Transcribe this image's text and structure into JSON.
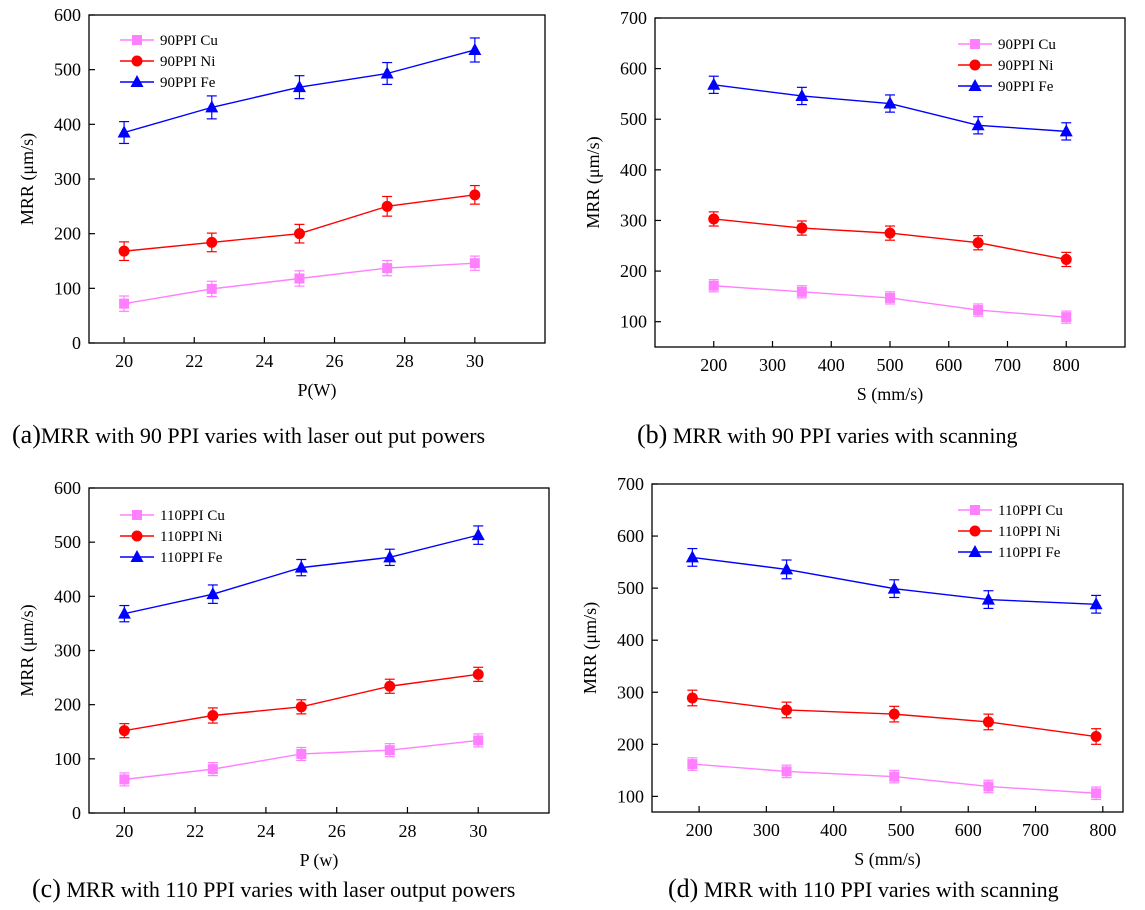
{
  "chart_data": [
    {
      "id": "a",
      "type": "line",
      "caption_tag": "(a)",
      "caption_text": "MRR with 90 PPI varies with laser out put powers",
      "xlabel": "P(W)",
      "ylabel": "MRR (μm/s)",
      "xlim": [
        19,
        32
      ],
      "ylim": [
        0,
        600
      ],
      "xticks": [
        20,
        22,
        24,
        26,
        28,
        30
      ],
      "yticks": [
        0,
        100,
        200,
        300,
        400,
        500,
        600
      ],
      "legend_position": "top-left",
      "x": [
        20,
        22.5,
        25,
        27.5,
        30
      ],
      "series": [
        {
          "name": "90PPI Cu",
          "marker": "square",
          "color": "#ff80ff",
          "values": [
            72,
            99,
            118,
            137,
            146
          ],
          "errors": [
            14,
            14,
            14,
            14,
            13
          ]
        },
        {
          "name": "90PPI Ni",
          "marker": "circle",
          "color": "#ff0000",
          "values": [
            168,
            184,
            200,
            250,
            271
          ],
          "errors": [
            17,
            17,
            17,
            18,
            17
          ]
        },
        {
          "name": "90PPI Fe",
          "marker": "triangle",
          "color": "#0000ff",
          "values": [
            385,
            431,
            468,
            493,
            536
          ],
          "errors": [
            20,
            21,
            21,
            20,
            22
          ]
        }
      ]
    },
    {
      "id": "b",
      "type": "line",
      "caption_tag": "(b)",
      "caption_text": "MRR with 90 PPI varies with scanning",
      "xlabel": "S (mm/s)",
      "ylabel": "MRR (μm/s)",
      "xlim": [
        100,
        900
      ],
      "ylim": [
        50,
        700
      ],
      "xticks": [
        200,
        300,
        400,
        500,
        600,
        700,
        800
      ],
      "yticks": [
        100,
        200,
        300,
        400,
        500,
        600,
        700
      ],
      "legend_position": "top-right",
      "x": [
        200,
        350,
        500,
        650,
        800
      ],
      "series": [
        {
          "name": "90PPI Cu",
          "marker": "square",
          "color": "#ff80ff",
          "values": [
            171,
            159,
            147,
            123,
            109
          ],
          "errors": [
            12,
            12,
            12,
            12,
            12
          ]
        },
        {
          "name": "90PPI Ni",
          "marker": "circle",
          "color": "#ff0000",
          "values": [
            303,
            285,
            275,
            256,
            223
          ],
          "errors": [
            14,
            14,
            14,
            14,
            14
          ]
        },
        {
          "name": "90PPI Fe",
          "marker": "triangle",
          "color": "#0000ff",
          "values": [
            568,
            546,
            531,
            488,
            476
          ],
          "errors": [
            17,
            17,
            17,
            17,
            17
          ]
        }
      ]
    },
    {
      "id": "c",
      "type": "line",
      "caption_tag": "(c)",
      "caption_text": "MRR with 110 PPI varies with laser output powers",
      "xlabel": "P (w)",
      "ylabel": "MRR (μm/s)",
      "xlim": [
        19,
        32
      ],
      "ylim": [
        0,
        600
      ],
      "xticks": [
        20,
        22,
        24,
        26,
        28,
        30
      ],
      "yticks": [
        0,
        100,
        200,
        300,
        400,
        500,
        600
      ],
      "legend_position": "top-left",
      "x": [
        20,
        22.5,
        25,
        27.5,
        30
      ],
      "series": [
        {
          "name": "110PPI Cu",
          "marker": "square",
          "color": "#ff80ff",
          "values": [
            62,
            81,
            109,
            116,
            134
          ],
          "errors": [
            12,
            12,
            12,
            12,
            12
          ]
        },
        {
          "name": "110PPI Ni",
          "marker": "circle",
          "color": "#ff0000",
          "values": [
            152,
            180,
            196,
            234,
            256
          ],
          "errors": [
            13,
            14,
            13,
            13,
            13
          ]
        },
        {
          "name": "110PPI Fe",
          "marker": "triangle",
          "color": "#0000ff",
          "values": [
            368,
            404,
            453,
            472,
            513
          ],
          "errors": [
            15,
            17,
            15,
            15,
            17
          ]
        }
      ]
    },
    {
      "id": "d",
      "type": "line",
      "caption_tag": "(d)",
      "caption_text": "MRR with 110 PPI varies with scanning",
      "xlabel": "S (mm/s)",
      "ylabel": "MRR (μm/s)",
      "xlim": [
        130,
        830
      ],
      "ylim": [
        70,
        700
      ],
      "xticks": [
        200,
        300,
        400,
        500,
        600,
        700,
        800
      ],
      "yticks": [
        100,
        200,
        300,
        400,
        500,
        600,
        700
      ],
      "legend_position": "top-right",
      "x": [
        190,
        330,
        490,
        630,
        790
      ],
      "series": [
        {
          "name": "110PPI Cu",
          "marker": "square",
          "color": "#ff80ff",
          "values": [
            162,
            148,
            138,
            119,
            106
          ],
          "errors": [
            12,
            12,
            12,
            12,
            12
          ]
        },
        {
          "name": "110PPI Ni",
          "marker": "circle",
          "color": "#ff0000",
          "values": [
            289,
            266,
            258,
            243,
            215
          ],
          "errors": [
            15,
            15,
            15,
            15,
            15
          ]
        },
        {
          "name": "110PPI Fe",
          "marker": "triangle",
          "color": "#0000ff",
          "values": [
            559,
            536,
            499,
            478,
            469
          ],
          "errors": [
            17,
            18,
            17,
            17,
            17
          ]
        }
      ]
    }
  ]
}
